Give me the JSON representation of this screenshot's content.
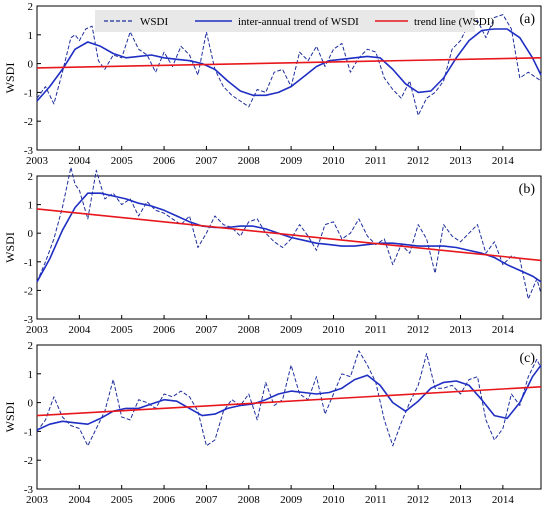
{
  "legend": {
    "entries": [
      {
        "label": "WSDI",
        "color": "#1f2f9e",
        "style": "dashed"
      },
      {
        "label": "inter-annual trend of WSDI",
        "color": "#1f2fc4",
        "style": "solid"
      },
      {
        "label": "trend line (WSDI)",
        "color": "#e8171c",
        "style": "solid"
      }
    ],
    "background": "#e8e8e8"
  },
  "chart_data": [
    {
      "type": "line",
      "panel_tag": "(a)",
      "ylabel": "WSDI",
      "xlim": [
        2003,
        2014.9
      ],
      "ylim": [
        -3,
        2
      ],
      "xticks": [
        "2003",
        "2004",
        "2005",
        "2006",
        "2007",
        "2008",
        "2009",
        "2010",
        "2011",
        "2012",
        "2013",
        "2014"
      ],
      "yticks": [
        "-3",
        "-2",
        "-1",
        "0",
        "1",
        "2"
      ],
      "series": [
        {
          "name": "WSDI",
          "color": "#1f2f9e",
          "style": "dashed",
          "x": [
            2003.0,
            2003.2,
            2003.4,
            2003.6,
            2003.8,
            2003.9,
            2004.0,
            2004.15,
            2004.3,
            2004.45,
            2004.6,
            2004.8,
            2005.0,
            2005.2,
            2005.4,
            2005.6,
            2005.8,
            2006.0,
            2006.2,
            2006.4,
            2006.6,
            2006.8,
            2007.0,
            2007.2,
            2007.4,
            2007.6,
            2007.8,
            2008.0,
            2008.2,
            2008.4,
            2008.6,
            2008.8,
            2009.0,
            2009.2,
            2009.4,
            2009.6,
            2009.8,
            2010.0,
            2010.2,
            2010.4,
            2010.6,
            2010.8,
            2011.0,
            2011.2,
            2011.4,
            2011.6,
            2011.8,
            2012.0,
            2012.2,
            2012.4,
            2012.6,
            2012.8,
            2013.0,
            2013.2,
            2013.4,
            2013.6,
            2013.8,
            2014.0,
            2014.2,
            2014.4,
            2014.6,
            2014.9
          ],
          "y": [
            -1.2,
            -0.8,
            -1.4,
            -0.3,
            0.9,
            1.0,
            0.8,
            1.2,
            1.3,
            0.1,
            -0.2,
            0.3,
            0.2,
            1.1,
            0.5,
            0.3,
            -0.3,
            0.4,
            -0.1,
            0.6,
            0.3,
            -0.4,
            1.1,
            -0.2,
            -0.8,
            -1.1,
            -1.3,
            -1.5,
            -0.9,
            -1.0,
            -0.3,
            -0.2,
            -0.8,
            0.4,
            0.1,
            0.6,
            -0.1,
            0.5,
            0.7,
            -0.3,
            0.2,
            0.5,
            0.4,
            -0.5,
            -0.9,
            -1.2,
            -0.6,
            -1.8,
            -1.2,
            -1.0,
            -0.6,
            0.5,
            0.8,
            1.4,
            1.5,
            0.9,
            1.6,
            1.7,
            1.2,
            -0.5,
            -0.3,
            -0.6
          ]
        },
        {
          "name": "inter-annual trend of WSDI",
          "color": "#1f2fc4",
          "style": "solid",
          "x": [
            2003.0,
            2003.3,
            2003.6,
            2003.9,
            2004.2,
            2004.5,
            2004.8,
            2005.1,
            2005.4,
            2005.7,
            2006.0,
            2006.3,
            2006.6,
            2006.9,
            2007.2,
            2007.5,
            2007.8,
            2008.1,
            2008.4,
            2008.7,
            2009.0,
            2009.3,
            2009.6,
            2009.9,
            2010.2,
            2010.5,
            2010.8,
            2011.1,
            2011.4,
            2011.7,
            2012.0,
            2012.3,
            2012.6,
            2012.9,
            2013.2,
            2013.5,
            2013.8,
            2014.1,
            2014.4,
            2014.7,
            2014.9
          ],
          "y": [
            -1.3,
            -0.8,
            -0.2,
            0.5,
            0.75,
            0.6,
            0.35,
            0.2,
            0.25,
            0.3,
            0.2,
            0.15,
            0.1,
            0.0,
            -0.2,
            -0.6,
            -0.95,
            -1.1,
            -1.1,
            -1.0,
            -0.8,
            -0.45,
            -0.1,
            0.1,
            0.15,
            0.2,
            0.25,
            0.2,
            -0.2,
            -0.7,
            -1.0,
            -0.95,
            -0.5,
            0.2,
            0.8,
            1.15,
            1.2,
            1.2,
            0.9,
            0.2,
            -0.4
          ]
        },
        {
          "name": "trend line (WSDI)",
          "color": "#e8171c",
          "style": "solid",
          "x": [
            2003.0,
            2014.9
          ],
          "y": [
            -0.15,
            0.2
          ]
        }
      ]
    },
    {
      "type": "line",
      "panel_tag": "(b)",
      "ylabel": "WSDI",
      "xlim": [
        2003,
        2014.9
      ],
      "ylim": [
        -3,
        2
      ],
      "xticks": [
        "2003",
        "2004",
        "2005",
        "2006",
        "2007",
        "2008",
        "2009",
        "2010",
        "2011",
        "2012",
        "2013",
        "2014"
      ],
      "yticks": [
        "-3",
        "-2",
        "-1",
        "0",
        "1",
        "2"
      ],
      "series": [
        {
          "name": "WSDI",
          "color": "#1f2f9e",
          "style": "dashed",
          "x": [
            2003.0,
            2003.2,
            2003.4,
            2003.6,
            2003.8,
            2003.9,
            2004.0,
            2004.2,
            2004.4,
            2004.6,
            2004.8,
            2005.0,
            2005.2,
            2005.4,
            2005.6,
            2005.8,
            2006.0,
            2006.2,
            2006.4,
            2006.6,
            2006.8,
            2007.0,
            2007.2,
            2007.4,
            2007.6,
            2007.8,
            2008.0,
            2008.2,
            2008.4,
            2008.6,
            2008.8,
            2009.0,
            2009.2,
            2009.4,
            2009.6,
            2009.8,
            2010.0,
            2010.2,
            2010.4,
            2010.6,
            2010.8,
            2011.0,
            2011.2,
            2011.4,
            2011.6,
            2011.8,
            2012.0,
            2012.2,
            2012.4,
            2012.6,
            2012.8,
            2013.0,
            2013.2,
            2013.4,
            2013.6,
            2013.8,
            2014.0,
            2014.2,
            2014.4,
            2014.6,
            2014.8,
            2014.9
          ],
          "y": [
            -1.7,
            -1.0,
            -0.2,
            0.9,
            2.3,
            1.7,
            1.5,
            0.5,
            2.2,
            1.2,
            1.4,
            1.0,
            1.2,
            0.6,
            1.1,
            0.8,
            0.7,
            0.5,
            0.3,
            0.6,
            -0.5,
            0.0,
            0.6,
            0.3,
            0.2,
            -0.1,
            0.4,
            0.5,
            0.0,
            -0.3,
            -0.5,
            -0.2,
            0.3,
            -0.1,
            -0.6,
            0.3,
            0.4,
            -0.2,
            0.0,
            0.5,
            -0.1,
            -0.4,
            -0.2,
            -1.1,
            -0.4,
            -0.7,
            0.3,
            -0.2,
            -1.4,
            0.3,
            -0.1,
            -0.3,
            0.0,
            0.3,
            -0.7,
            -0.3,
            -1.1,
            -0.8,
            -0.9,
            -2.3,
            -1.6,
            -2.1
          ]
        },
        {
          "name": "inter-annual trend of WSDI",
          "color": "#1f2fc4",
          "style": "solid",
          "x": [
            2003.0,
            2003.3,
            2003.6,
            2003.9,
            2004.2,
            2004.5,
            2004.8,
            2005.1,
            2005.4,
            2005.7,
            2006.0,
            2006.3,
            2006.6,
            2006.9,
            2007.2,
            2007.5,
            2007.8,
            2008.1,
            2008.4,
            2008.7,
            2009.0,
            2009.3,
            2009.6,
            2009.9,
            2010.2,
            2010.5,
            2010.8,
            2011.1,
            2011.4,
            2011.7,
            2012.0,
            2012.3,
            2012.6,
            2012.9,
            2013.2,
            2013.5,
            2013.8,
            2014.1,
            2014.4,
            2014.7,
            2014.9
          ],
          "y": [
            -1.7,
            -0.9,
            0.1,
            0.9,
            1.4,
            1.4,
            1.3,
            1.2,
            1.05,
            0.95,
            0.8,
            0.6,
            0.4,
            0.25,
            0.2,
            0.2,
            0.25,
            0.25,
            0.15,
            0.0,
            -0.15,
            -0.25,
            -0.35,
            -0.4,
            -0.45,
            -0.45,
            -0.4,
            -0.35,
            -0.35,
            -0.4,
            -0.45,
            -0.45,
            -0.45,
            -0.5,
            -0.6,
            -0.7,
            -0.85,
            -1.1,
            -1.3,
            -1.5,
            -1.7
          ]
        },
        {
          "name": "trend line (WSDI)",
          "color": "#e8171c",
          "style": "solid",
          "x": [
            2003.0,
            2014.9
          ],
          "y": [
            0.85,
            -0.95
          ]
        }
      ]
    },
    {
      "type": "line",
      "panel_tag": "(c)",
      "ylabel": "WSDI",
      "xlim": [
        2003,
        2014.9
      ],
      "ylim": [
        -3,
        2
      ],
      "xticks": [
        "2003",
        "2004",
        "2005",
        "2006",
        "2007",
        "2008",
        "2009",
        "2010",
        "2011",
        "2012",
        "2013",
        "2014"
      ],
      "yticks": [
        "-3",
        "-2",
        "-1",
        "0",
        "1",
        "2"
      ],
      "series": [
        {
          "name": "WSDI",
          "color": "#1f2f9e",
          "style": "dashed",
          "x": [
            2003.0,
            2003.2,
            2003.4,
            2003.6,
            2003.8,
            2004.0,
            2004.2,
            2004.4,
            2004.6,
            2004.8,
            2005.0,
            2005.2,
            2005.4,
            2005.6,
            2005.8,
            2006.0,
            2006.2,
            2006.4,
            2006.6,
            2006.8,
            2007.0,
            2007.2,
            2007.4,
            2007.6,
            2007.8,
            2008.0,
            2008.2,
            2008.4,
            2008.6,
            2008.8,
            2009.0,
            2009.2,
            2009.4,
            2009.6,
            2009.8,
            2010.0,
            2010.2,
            2010.4,
            2010.6,
            2010.8,
            2011.0,
            2011.2,
            2011.4,
            2011.6,
            2011.8,
            2012.0,
            2012.2,
            2012.4,
            2012.6,
            2012.8,
            2013.0,
            2013.2,
            2013.4,
            2013.6,
            2013.8,
            2014.0,
            2014.2,
            2014.4,
            2014.6,
            2014.8,
            2014.9
          ],
          "y": [
            -1.0,
            -0.6,
            0.2,
            -0.5,
            -0.8,
            -0.9,
            -1.5,
            -0.9,
            -0.3,
            0.8,
            -0.5,
            -0.6,
            0.1,
            0.0,
            -0.2,
            0.3,
            0.2,
            0.4,
            0.2,
            -0.3,
            -1.5,
            -1.3,
            -0.3,
            0.1,
            -0.1,
            0.3,
            -0.6,
            0.7,
            -0.1,
            0.1,
            1.3,
            0.3,
            0.1,
            0.9,
            -0.4,
            0.3,
            1.0,
            0.9,
            1.8,
            1.3,
            0.7,
            -0.6,
            -1.5,
            -0.7,
            0.0,
            0.6,
            1.7,
            0.5,
            0.5,
            0.6,
            0.3,
            0.8,
            0.9,
            -0.6,
            -1.3,
            -0.9,
            0.3,
            -0.1,
            0.9,
            1.5,
            1.2
          ]
        },
        {
          "name": "inter-annual trend of WSDI",
          "color": "#1f2fc4",
          "style": "solid",
          "x": [
            2003.0,
            2003.3,
            2003.6,
            2003.9,
            2004.2,
            2004.5,
            2004.8,
            2005.1,
            2005.4,
            2005.7,
            2006.0,
            2006.3,
            2006.6,
            2006.9,
            2007.2,
            2007.5,
            2007.8,
            2008.1,
            2008.4,
            2008.7,
            2009.0,
            2009.3,
            2009.6,
            2009.9,
            2010.2,
            2010.5,
            2010.8,
            2011.1,
            2011.4,
            2011.7,
            2012.0,
            2012.3,
            2012.6,
            2012.9,
            2013.2,
            2013.5,
            2013.8,
            2014.1,
            2014.4,
            2014.7,
            2014.9
          ],
          "y": [
            -0.95,
            -0.75,
            -0.65,
            -0.7,
            -0.75,
            -0.55,
            -0.3,
            -0.2,
            -0.2,
            -0.05,
            0.1,
            0.05,
            -0.2,
            -0.45,
            -0.4,
            -0.2,
            -0.1,
            -0.05,
            0.1,
            0.3,
            0.4,
            0.35,
            0.3,
            0.35,
            0.5,
            0.8,
            0.95,
            0.6,
            0.0,
            -0.3,
            0.05,
            0.5,
            0.7,
            0.75,
            0.6,
            0.1,
            -0.45,
            -0.55,
            0.0,
            0.9,
            1.3
          ]
        },
        {
          "name": "trend line (WSDI)",
          "color": "#e8171c",
          "style": "solid",
          "x": [
            2003.0,
            2014.9
          ],
          "y": [
            -0.45,
            0.55
          ]
        }
      ]
    }
  ]
}
